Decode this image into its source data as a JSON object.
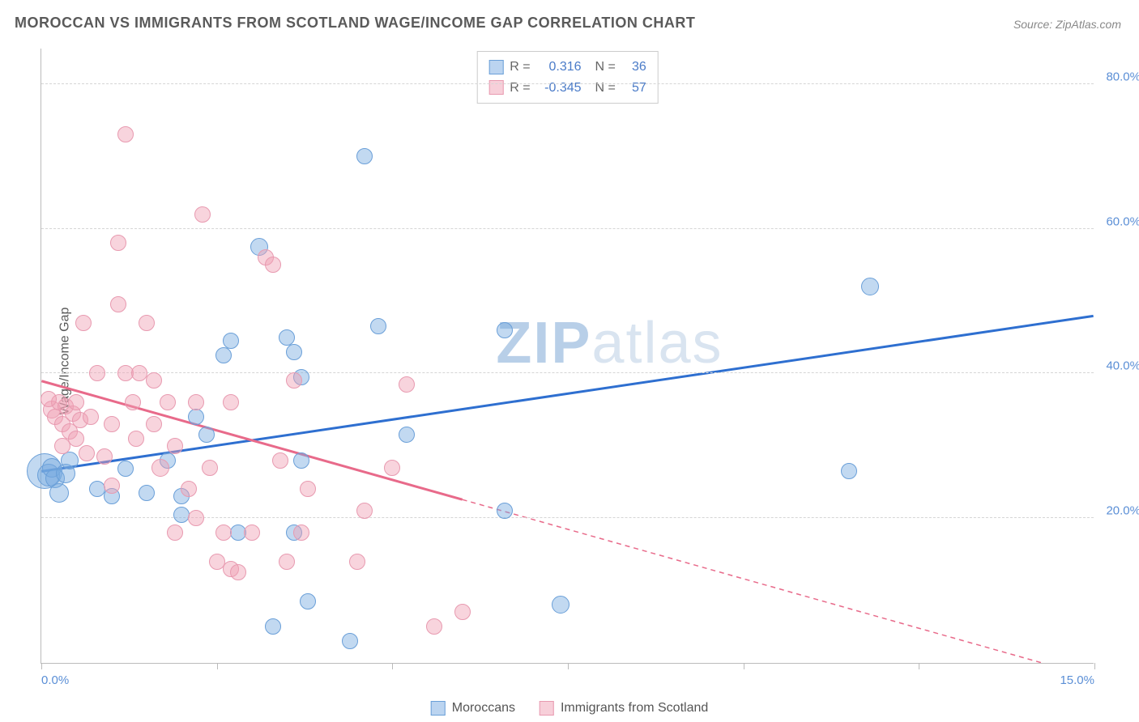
{
  "title": "MOROCCAN VS IMMIGRANTS FROM SCOTLAND WAGE/INCOME GAP CORRELATION CHART",
  "source_label": "Source: ZipAtlas.com",
  "y_axis_label": "Wage/Income Gap",
  "watermark": {
    "text_bold": "ZIP",
    "text_light": "atlas",
    "color_bold": "#b8cfe8",
    "color_light": "#d9e4f0"
  },
  "chart": {
    "type": "scatter",
    "xlim": [
      0,
      15
    ],
    "ylim": [
      0,
      85
    ],
    "x_ticks": [
      0,
      2.5,
      5,
      7.5,
      10,
      12.5,
      15
    ],
    "x_tick_labels": {
      "0": "0.0%",
      "15": "15.0%"
    },
    "y_gridlines": [
      20,
      40,
      60,
      80
    ],
    "y_tick_labels": {
      "20": "20.0%",
      "40": "40.0%",
      "60": "60.0%",
      "80": "80.0%"
    },
    "background_color": "#ffffff",
    "grid_color": "#d5d5d5",
    "axis_color": "#bbbbbb",
    "tick_label_color": "#5b8fd6",
    "point_radius": 10,
    "series": [
      {
        "key": "moroccans",
        "label": "Moroccans",
        "fill": "rgba(120,170,225,0.45)",
        "stroke": "#6a9fd8",
        "trend": {
          "color": "#2e6fd0",
          "width": 3,
          "y_at_x0": 26.5,
          "y_at_xmax": 48,
          "solid_until_x": 15
        },
        "stats": {
          "R": "0.316",
          "N": "36"
        },
        "points": [
          [
            0.05,
            26.5,
            22
          ],
          [
            0.1,
            26,
            14
          ],
          [
            0.15,
            27,
            12
          ],
          [
            0.2,
            25.5,
            12
          ],
          [
            0.25,
            23.5,
            12
          ],
          [
            0.35,
            26.2,
            12
          ],
          [
            0.4,
            28,
            11
          ],
          [
            3.1,
            57.5,
            11
          ],
          [
            0.8,
            24,
            10
          ],
          [
            1.0,
            23,
            10
          ],
          [
            1.2,
            26.8,
            10
          ],
          [
            1.5,
            23.5,
            10
          ],
          [
            1.8,
            28,
            10
          ],
          [
            2.0,
            23,
            10
          ],
          [
            2.0,
            20.5,
            10
          ],
          [
            2.2,
            34,
            10
          ],
          [
            2.35,
            31.5,
            10
          ],
          [
            2.6,
            42.5,
            10
          ],
          [
            2.7,
            44.5,
            10
          ],
          [
            2.8,
            18,
            10
          ],
          [
            3.6,
            18,
            10
          ],
          [
            3.5,
            45,
            10
          ],
          [
            3.6,
            43,
            10
          ],
          [
            3.7,
            39.5,
            10
          ],
          [
            3.7,
            28,
            10
          ],
          [
            3.8,
            8.5,
            10
          ],
          [
            4.6,
            70,
            10
          ],
          [
            4.8,
            46.5,
            10
          ],
          [
            5.2,
            31.5,
            10
          ],
          [
            6.6,
            46,
            10
          ],
          [
            6.6,
            21,
            10
          ],
          [
            7.4,
            8,
            11
          ],
          [
            11.8,
            52,
            11
          ],
          [
            11.5,
            26.5,
            10
          ],
          [
            3.3,
            5,
            10
          ],
          [
            4.4,
            3,
            10
          ]
        ]
      },
      {
        "key": "scotland",
        "label": "Immigrants from Scotland",
        "fill": "rgba(240,160,180,0.45)",
        "stroke": "#e89ab0",
        "trend": {
          "color": "#e86a8a",
          "width": 3,
          "y_at_x0": 39,
          "y_at_xmax": -2,
          "solid_until_x": 6.0
        },
        "stats": {
          "R": "-0.345",
          "N": "57"
        },
        "points": [
          [
            0.15,
            35,
            11
          ],
          [
            0.2,
            34,
            10
          ],
          [
            0.25,
            36,
            10
          ],
          [
            0.3,
            30,
            10
          ],
          [
            0.3,
            33,
            10
          ],
          [
            0.35,
            35.5,
            10
          ],
          [
            0.4,
            32,
            10
          ],
          [
            0.45,
            34.5,
            10
          ],
          [
            0.5,
            31,
            10
          ],
          [
            0.5,
            36,
            10
          ],
          [
            0.55,
            33.5,
            10
          ],
          [
            0.6,
            47,
            10
          ],
          [
            0.65,
            29,
            10
          ],
          [
            0.7,
            34,
            10
          ],
          [
            0.8,
            40,
            10
          ],
          [
            0.9,
            28.5,
            10
          ],
          [
            1.0,
            24.5,
            10
          ],
          [
            1.0,
            33,
            10
          ],
          [
            1.1,
            58,
            10
          ],
          [
            1.1,
            49.5,
            10
          ],
          [
            1.2,
            40,
            10
          ],
          [
            1.2,
            73,
            10
          ],
          [
            1.3,
            36,
            10
          ],
          [
            1.35,
            31,
            10
          ],
          [
            1.4,
            40,
            10
          ],
          [
            1.5,
            47,
            10
          ],
          [
            1.6,
            39,
            10
          ],
          [
            1.6,
            33,
            10
          ],
          [
            1.7,
            27,
            11
          ],
          [
            1.8,
            36,
            10
          ],
          [
            1.9,
            30,
            10
          ],
          [
            1.9,
            18,
            10
          ],
          [
            2.1,
            24,
            10
          ],
          [
            2.2,
            36,
            10
          ],
          [
            2.2,
            20,
            10
          ],
          [
            2.3,
            62,
            10
          ],
          [
            2.4,
            27,
            10
          ],
          [
            2.5,
            14,
            10
          ],
          [
            2.6,
            18,
            10
          ],
          [
            2.7,
            13,
            10
          ],
          [
            2.7,
            36,
            10
          ],
          [
            2.8,
            12.5,
            10
          ],
          [
            3.0,
            18,
            10
          ],
          [
            3.2,
            56,
            10
          ],
          [
            3.3,
            55,
            10
          ],
          [
            3.4,
            28,
            10
          ],
          [
            3.5,
            14,
            10
          ],
          [
            3.6,
            39,
            10
          ],
          [
            3.7,
            18,
            10
          ],
          [
            3.8,
            24,
            10
          ],
          [
            4.5,
            14,
            10
          ],
          [
            4.6,
            21,
            10
          ],
          [
            5.0,
            27,
            10
          ],
          [
            5.2,
            38.5,
            10
          ],
          [
            5.6,
            5,
            10
          ],
          [
            6.0,
            7,
            10
          ],
          [
            0.1,
            36.5,
            10
          ]
        ]
      }
    ]
  },
  "legend": {
    "swatch_border_blue": "#6a9fd8",
    "swatch_fill_blue": "rgba(120,170,225,0.5)",
    "swatch_border_pink": "#e89ab0",
    "swatch_fill_pink": "rgba(240,160,180,0.5)"
  }
}
